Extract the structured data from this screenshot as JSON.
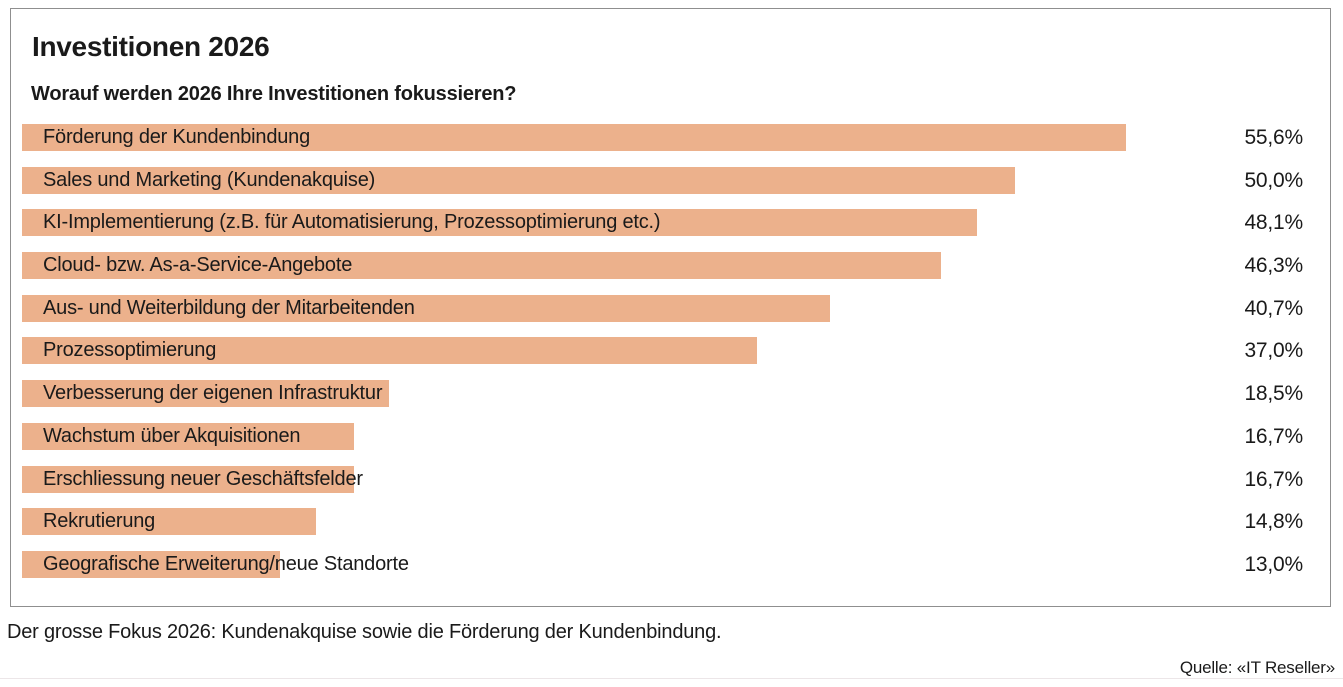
{
  "page": {
    "caption": "Der grosse Fokus 2026: Kundenakquise sowie die Förderung der Kundenbindung.",
    "source": "Quelle: «IT Reseller»"
  },
  "colors": {
    "bar": "#ecb18c",
    "border": "#8f8f8f",
    "text": "#1a1a1a",
    "bottom_rule": "#ece6e8"
  },
  "chart_data": {
    "type": "bar",
    "orientation": "horizontal",
    "title": "Investitionen 2026",
    "subtitle": "Worauf werden 2026 Ihre Investitionen fokussieren?",
    "unit": "%",
    "xlim": [
      0,
      66
    ],
    "grid": false,
    "legend": "none",
    "value_label_position": "right-aligned column",
    "categories": [
      "Förderung der Kundenbindung",
      "Sales und Marketing (Kundenakquise)",
      "KI-Implementierung (z.B. für Automatisierung, Prozessoptimierung etc.)",
      "Cloud- bzw. As-a-Service-Angebote",
      "Aus- und Weiterbildung der Mitarbeitenden",
      "Prozessoptimierung",
      "Verbesserung der eigenen Infrastruktur",
      "Wachstum über Akquisitionen",
      "Erschliessung neuer Geschäftsfelder",
      "Rekrutierung",
      "Geografische Erweiterung/neue Standorte"
    ],
    "values": [
      55.6,
      50.0,
      48.1,
      46.3,
      40.7,
      37.0,
      18.5,
      16.7,
      16.7,
      14.8,
      13.0
    ],
    "value_labels": [
      "55,6%",
      "50,0%",
      "48,1%",
      "46,3%",
      "40,7%",
      "37,0%",
      "18,5%",
      "16,7%",
      "16,7%",
      "14,8%",
      "13,0%"
    ]
  }
}
